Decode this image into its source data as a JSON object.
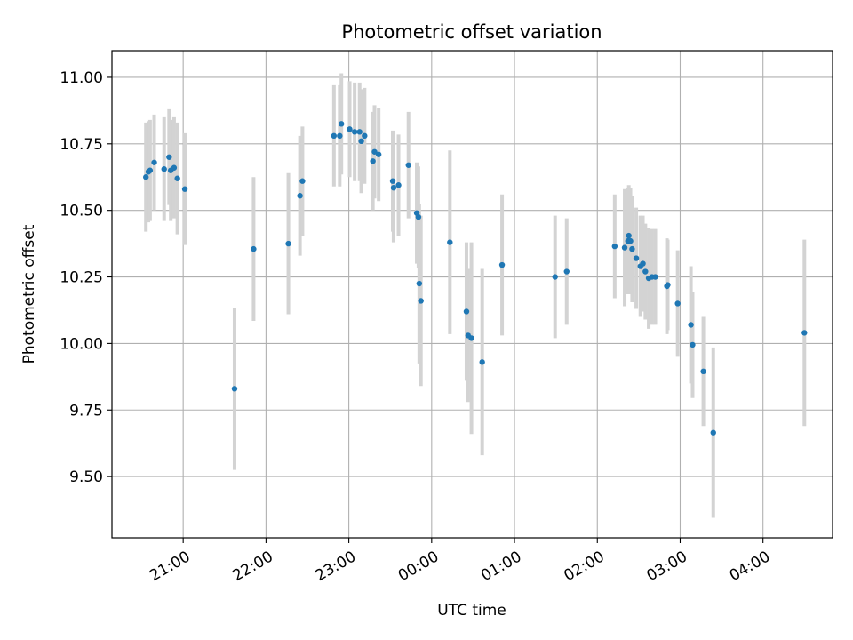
{
  "chart_data": {
    "type": "scatter",
    "title": "Photometric offset variation",
    "xlabel": "UTC time",
    "ylabel": "Photometric offset",
    "x_unit": "hours since 00:00 UTC (negative = previous day)",
    "xlim": [
      -3.86,
      4.84
    ],
    "ylim": [
      9.27,
      11.1
    ],
    "grid": true,
    "legend": "none",
    "xticks": [
      {
        "value": -3,
        "label": "21:00"
      },
      {
        "value": -2,
        "label": "22:00"
      },
      {
        "value": -1,
        "label": "23:00"
      },
      {
        "value": 0,
        "label": "00:00"
      },
      {
        "value": 1,
        "label": "01:00"
      },
      {
        "value": 2,
        "label": "02:00"
      },
      {
        "value": 3,
        "label": "03:00"
      },
      {
        "value": 4,
        "label": "04:00"
      }
    ],
    "yticks": [
      {
        "value": 11.0,
        "label": "11.00"
      },
      {
        "value": 10.75,
        "label": "10.75"
      },
      {
        "value": 10.5,
        "label": "10.50"
      },
      {
        "value": 10.25,
        "label": "10.25"
      },
      {
        "value": 10.0,
        "label": "10.00"
      },
      {
        "value": 9.75,
        "label": "9.75"
      },
      {
        "value": 9.5,
        "label": "9.50"
      }
    ],
    "colors": {
      "points": "#1f77b4",
      "error_bars": "#d3d3d3",
      "grid": "#b0b0b0"
    },
    "series": [
      {
        "points": [
          {
            "x": -3.45,
            "y": 10.625,
            "err": 0.205
          },
          {
            "x": -3.42,
            "y": 10.645,
            "err": 0.19
          },
          {
            "x": -3.4,
            "y": 10.65,
            "err": 0.19
          },
          {
            "x": -3.35,
            "y": 10.68,
            "err": 0.18
          },
          {
            "x": -3.23,
            "y": 10.655,
            "err": 0.195
          },
          {
            "x": -3.17,
            "y": 10.7,
            "err": 0.18
          },
          {
            "x": -3.15,
            "y": 10.65,
            "err": 0.19
          },
          {
            "x": -3.11,
            "y": 10.66,
            "err": 0.19
          },
          {
            "x": -3.07,
            "y": 10.62,
            "err": 0.21
          },
          {
            "x": -2.98,
            "y": 10.58,
            "err": 0.21
          },
          {
            "x": -2.38,
            "y": 9.83,
            "err": 0.305
          },
          {
            "x": -2.15,
            "y": 10.355,
            "err": 0.27
          },
          {
            "x": -1.73,
            "y": 10.375,
            "err": 0.265
          },
          {
            "x": -1.59,
            "y": 10.555,
            "err": 0.225
          },
          {
            "x": -1.56,
            "y": 10.61,
            "err": 0.205
          },
          {
            "x": -1.18,
            "y": 10.78,
            "err": 0.19
          },
          {
            "x": -1.11,
            "y": 10.78,
            "err": 0.19
          },
          {
            "x": -1.09,
            "y": 10.825,
            "err": 0.19
          },
          {
            "x": -0.99,
            "y": 10.805,
            "err": 0.18
          },
          {
            "x": -0.93,
            "y": 10.795,
            "err": 0.185
          },
          {
            "x": -0.87,
            "y": 10.795,
            "err": 0.185
          },
          {
            "x": -0.85,
            "y": 10.76,
            "err": 0.195
          },
          {
            "x": -0.81,
            "y": 10.78,
            "err": 0.18
          },
          {
            "x": -0.71,
            "y": 10.685,
            "err": 0.185
          },
          {
            "x": -0.69,
            "y": 10.72,
            "err": 0.175
          },
          {
            "x": -0.64,
            "y": 10.71,
            "err": 0.175
          },
          {
            "x": -0.47,
            "y": 10.61,
            "err": 0.19
          },
          {
            "x": -0.46,
            "y": 10.585,
            "err": 0.205
          },
          {
            "x": -0.4,
            "y": 10.595,
            "err": 0.19
          },
          {
            "x": -0.28,
            "y": 10.67,
            "err": 0.2
          },
          {
            "x": -0.18,
            "y": 10.49,
            "err": 0.19
          },
          {
            "x": -0.16,
            "y": 10.475,
            "err": 0.19
          },
          {
            "x": -0.15,
            "y": 10.225,
            "err": 0.3
          },
          {
            "x": -0.13,
            "y": 10.16,
            "err": 0.32
          },
          {
            "x": 0.22,
            "y": 10.38,
            "err": 0.345
          },
          {
            "x": 0.42,
            "y": 10.12,
            "err": 0.26
          },
          {
            "x": 0.44,
            "y": 10.03,
            "err": 0.25
          },
          {
            "x": 0.48,
            "y": 10.02,
            "err": 0.36
          },
          {
            "x": 0.61,
            "y": 9.93,
            "err": 0.35
          },
          {
            "x": 0.85,
            "y": 10.295,
            "err": 0.265
          },
          {
            "x": 1.49,
            "y": 10.25,
            "err": 0.23
          },
          {
            "x": 1.63,
            "y": 10.27,
            "err": 0.2
          },
          {
            "x": 2.21,
            "y": 10.365,
            "err": 0.195
          },
          {
            "x": 2.33,
            "y": 10.36,
            "err": 0.22
          },
          {
            "x": 2.37,
            "y": 10.385,
            "err": 0.2
          },
          {
            "x": 2.38,
            "y": 10.405,
            "err": 0.19
          },
          {
            "x": 2.4,
            "y": 10.385,
            "err": 0.2
          },
          {
            "x": 2.42,
            "y": 10.355,
            "err": 0.2
          },
          {
            "x": 2.47,
            "y": 10.32,
            "err": 0.19
          },
          {
            "x": 2.52,
            "y": 10.29,
            "err": 0.19
          },
          {
            "x": 2.55,
            "y": 10.3,
            "err": 0.18
          },
          {
            "x": 2.58,
            "y": 10.27,
            "err": 0.18
          },
          {
            "x": 2.62,
            "y": 10.245,
            "err": 0.19
          },
          {
            "x": 2.66,
            "y": 10.25,
            "err": 0.18
          },
          {
            "x": 2.7,
            "y": 10.25,
            "err": 0.18
          },
          {
            "x": 2.84,
            "y": 10.215,
            "err": 0.18
          },
          {
            "x": 2.85,
            "y": 10.22,
            "err": 0.17
          },
          {
            "x": 2.97,
            "y": 10.15,
            "err": 0.2
          },
          {
            "x": 3.13,
            "y": 10.07,
            "err": 0.22
          },
          {
            "x": 3.15,
            "y": 9.995,
            "err": 0.2
          },
          {
            "x": 3.28,
            "y": 9.895,
            "err": 0.205
          },
          {
            "x": 3.4,
            "y": 9.665,
            "err": 0.32
          },
          {
            "x": 4.5,
            "y": 10.04,
            "err": 0.35
          }
        ]
      }
    ]
  }
}
